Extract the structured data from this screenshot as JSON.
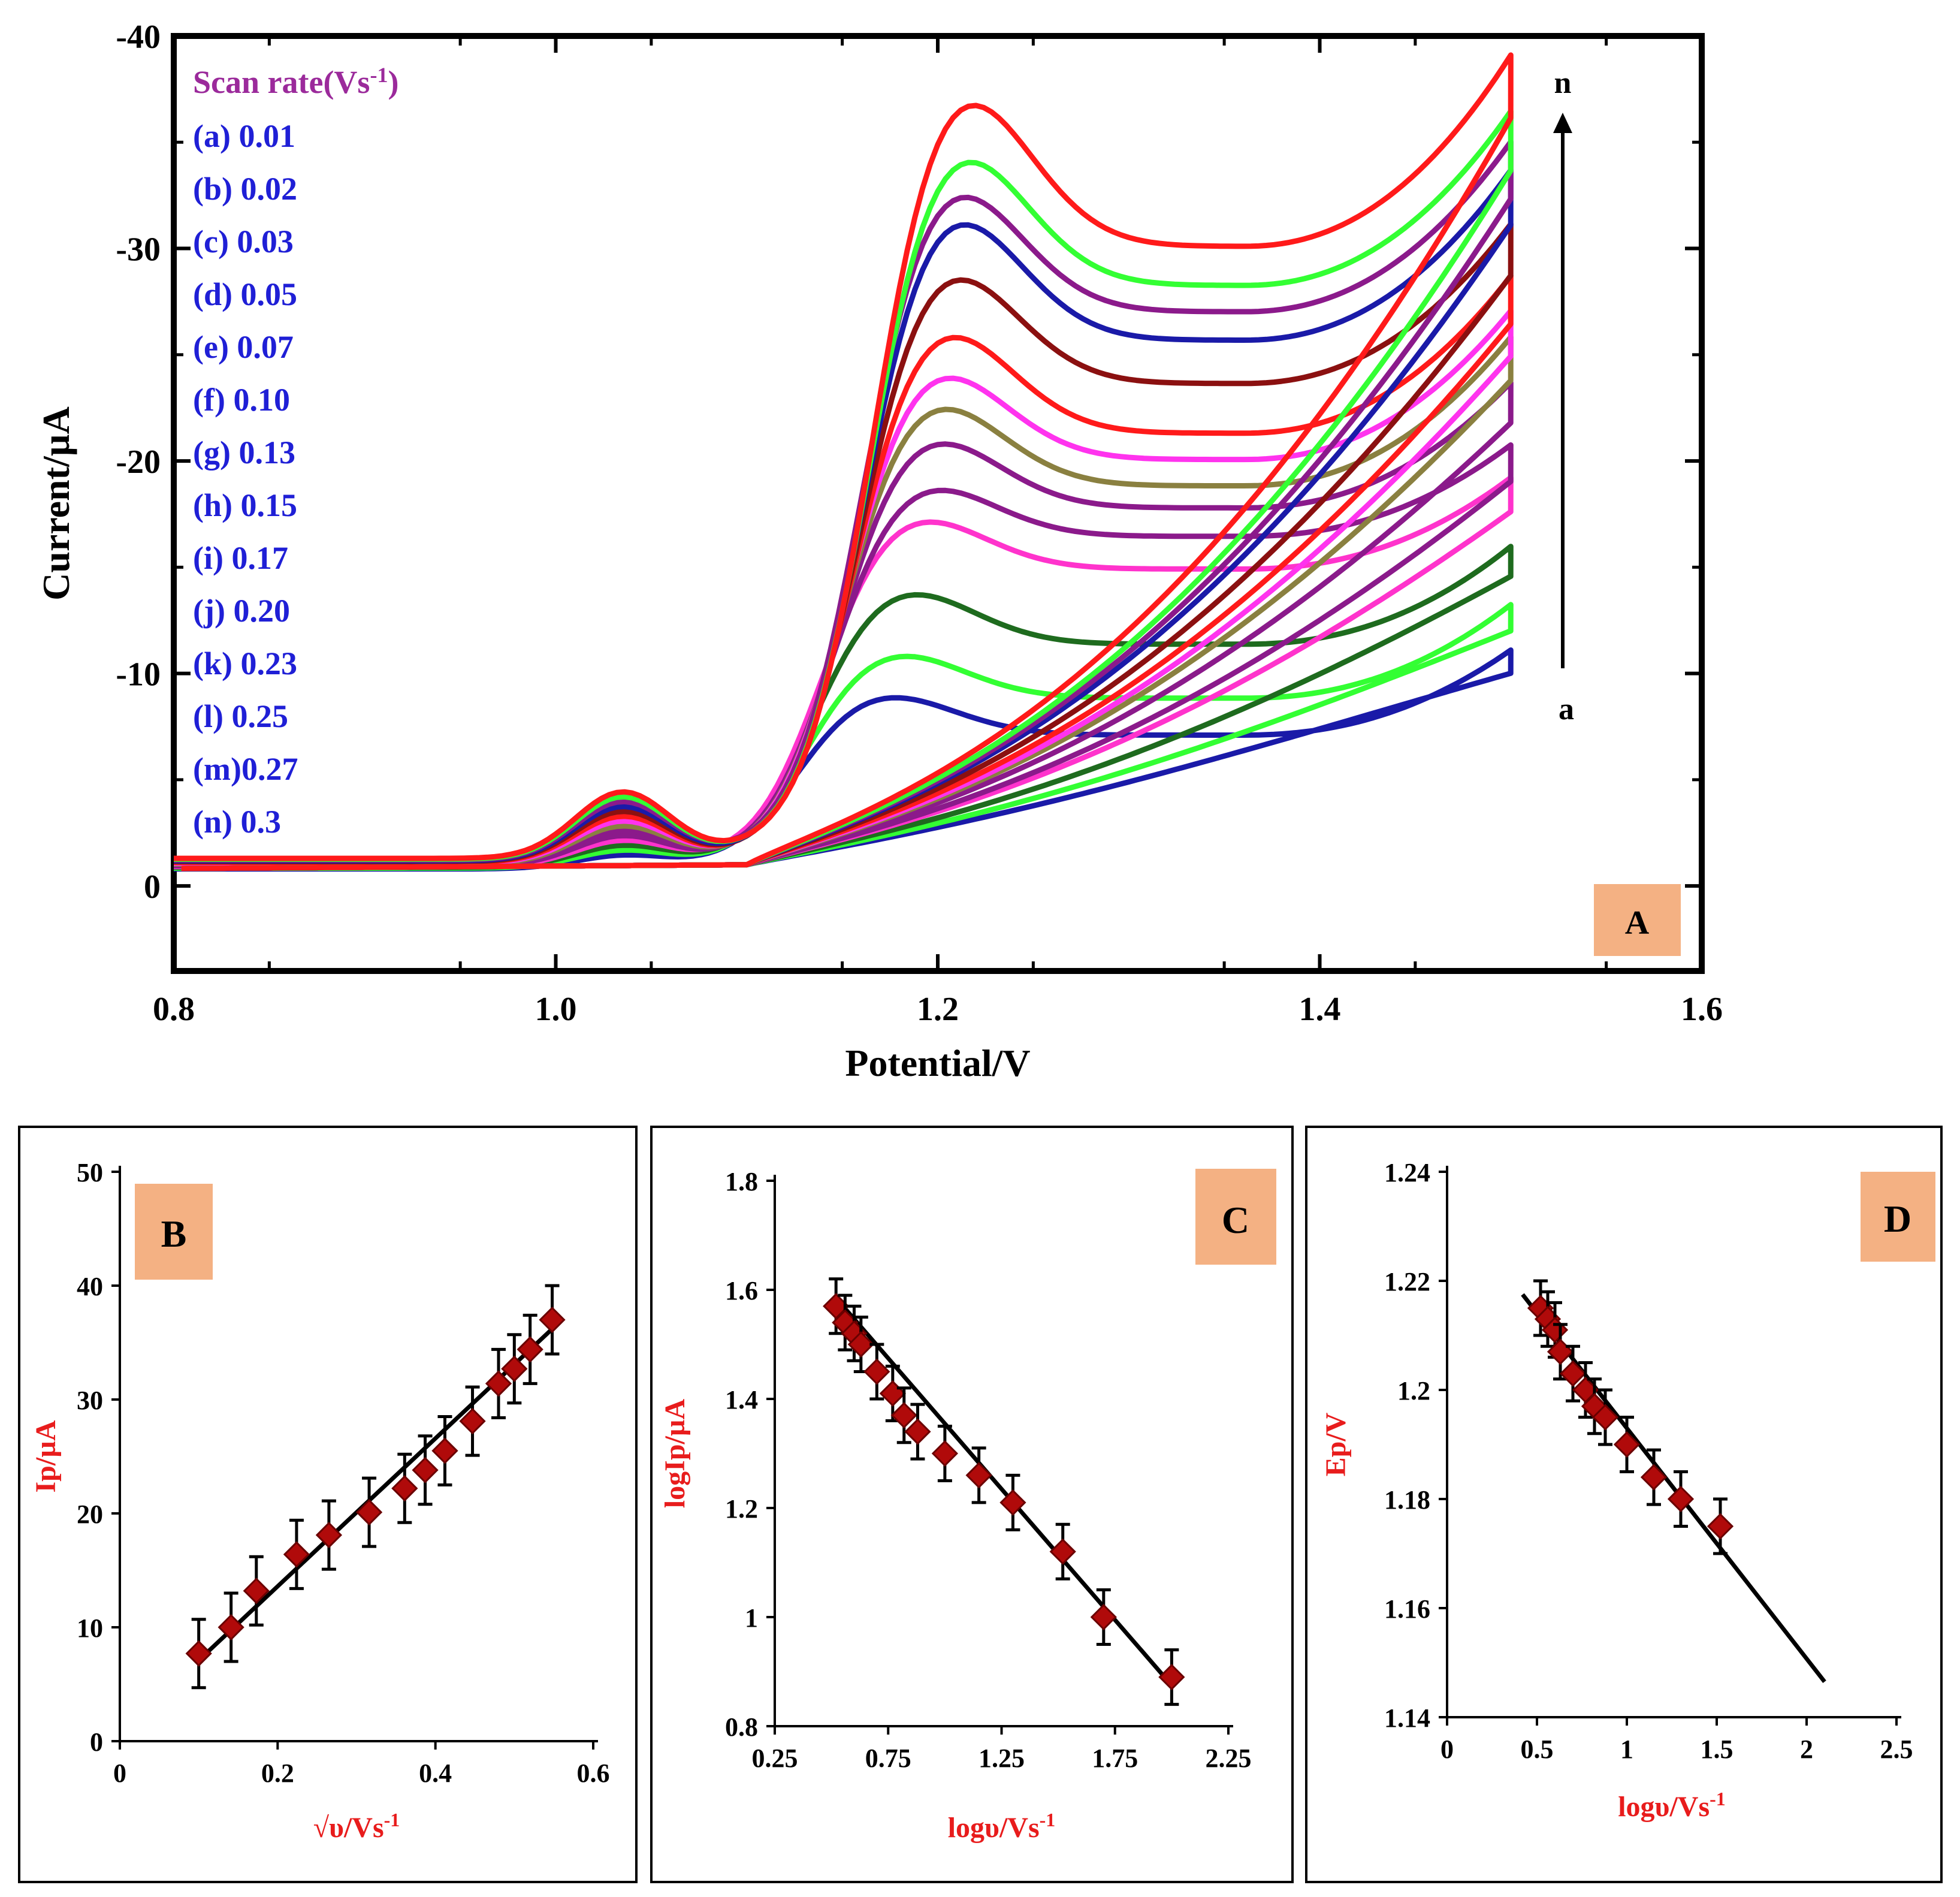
{
  "chart_data": [
    {
      "panel": "A",
      "type": "line",
      "xlabel": "Potential/V",
      "ylabel": "Current/µA",
      "xlim": [
        0.8,
        1.6
      ],
      "ylim": [
        4,
        -40
      ],
      "xticks": [
        "0.8",
        "1.0",
        "1.2",
        "1.4",
        "1.6"
      ],
      "xtick_values": [
        0.8,
        1.0,
        1.2,
        1.4,
        1.6
      ],
      "yticks": [
        "-40",
        "-30",
        "-20",
        "-10",
        "0"
      ],
      "ytick_values": [
        -40,
        -30,
        -20,
        -10,
        0
      ],
      "legend_title": "Scan rate(Vs",
      "legend_title_sup": "-1",
      "legend_title_end": ")",
      "arrow_top_label": "n",
      "arrow_bottom_label": "a",
      "series": [
        {
          "label": "(a) 0.01",
          "color": "#1a1aa8",
          "peak_e": 1.165,
          "peak_i": -8.5,
          "min_i": -6.3,
          "end_i": -10.3
        },
        {
          "label": "(b) 0.02",
          "color": "#33ff33",
          "peak_e": 1.17,
          "peak_i": -10.5,
          "min_i": -8.0,
          "end_i": -12.4
        },
        {
          "label": "(c) 0.03",
          "color": "#1e6b1e",
          "peak_e": 1.175,
          "peak_i": -13.5,
          "min_i": -10.5,
          "end_i": -15.1
        },
        {
          "label": "(d) 0.05",
          "color": "#ff33cc",
          "peak_e": 1.18,
          "peak_i": -17.0,
          "min_i": -14.0,
          "end_i": -18.3
        },
        {
          "label": "(e) 0.07",
          "color": "#8b1a8b",
          "peak_e": 1.185,
          "peak_i": -18.5,
          "min_i": -15.5,
          "end_i": -19.8
        },
        {
          "label": "(f) 0.10",
          "color": "#8b1a8b",
          "peak_e": 1.188,
          "peak_i": -20.8,
          "min_i": -16.8,
          "end_i": -22.7
        },
        {
          "label": "(g) 0.13",
          "color": "#8a8040",
          "peak_e": 1.19,
          "peak_i": -22.5,
          "min_i": -17.8,
          "end_i": -24.8
        },
        {
          "label": "(h) 0.15",
          "color": "#ff33ee",
          "peak_e": 1.192,
          "peak_i": -24.0,
          "min_i": -19.0,
          "end_i": -26.0
        },
        {
          "label": "(i)  0.17",
          "color": "#ff1a1a",
          "peak_e": 1.195,
          "peak_i": -26.0,
          "min_i": -20.2,
          "end_i": -27.6
        },
        {
          "label": "(j) 0.20",
          "color": "#8b1010",
          "peak_e": 1.198,
          "peak_i": -28.8,
          "min_i": -22.5,
          "end_i": -30.0
        },
        {
          "label": "(k) 0.23",
          "color": "#1a1aa8",
          "peak_e": 1.2,
          "peak_i": -31.5,
          "min_i": -24.5,
          "end_i": -32.5
        },
        {
          "label": "(l)  0.25",
          "color": "#8b1a8b",
          "peak_e": 1.2,
          "peak_i": -32.8,
          "min_i": -25.8,
          "end_i": -33.8
        },
        {
          "label": "(m)0.27",
          "color": "#33ff33",
          "peak_e": 1.203,
          "peak_i": -34.5,
          "min_i": -27.0,
          "end_i": -35.2
        },
        {
          "label": "(n)  0.3",
          "color": "#ff1a1a",
          "peak_e": 1.205,
          "peak_i": -37.3,
          "min_i": -28.8,
          "end_i": -37.8
        }
      ]
    },
    {
      "panel": "B",
      "type": "scatter",
      "xlabel": "√υ/Vs",
      "xlabel_sup": "-1",
      "ylabel": "Ip/µA",
      "xlim": [
        0,
        0.6
      ],
      "ylim": [
        0,
        50
      ],
      "xticks": [
        "0",
        "0.2",
        "0.4",
        "0.6"
      ],
      "xtick_values": [
        0,
        0.2,
        0.4,
        0.6
      ],
      "yticks": [
        "0",
        "10",
        "20",
        "30",
        "40",
        "50"
      ],
      "ytick_values": [
        0,
        10,
        20,
        30,
        40,
        50
      ],
      "x": [
        0.1,
        0.141,
        0.173,
        0.224,
        0.265,
        0.316,
        0.361,
        0.387,
        0.412,
        0.447,
        0.48,
        0.5,
        0.52,
        0.548
      ],
      "y": [
        7.7,
        10.0,
        13.2,
        16.4,
        18.1,
        20.1,
        22.2,
        23.8,
        25.5,
        28.1,
        31.4,
        32.7,
        34.4,
        37.0
      ],
      "error": 3.0,
      "fit": {
        "x": [
          0.1,
          0.548
        ],
        "y": [
          7.1,
          36.2
        ]
      }
    },
    {
      "panel": "C",
      "type": "scatter",
      "xlabel": "logυ/Vs",
      "xlabel_sup": "-1",
      "ylabel": "logIp/µA",
      "xlim": [
        0.25,
        2.25
      ],
      "ylim": [
        0.8,
        1.8
      ],
      "xticks": [
        "0.25",
        "0.75",
        "1.25",
        "1.75",
        "2.25"
      ],
      "xtick_values": [
        0.25,
        0.75,
        1.25,
        1.75,
        2.25
      ],
      "yticks": [
        "0.8",
        "1",
        "1.2",
        "1.4",
        "1.6",
        "1.8"
      ],
      "ytick_values": [
        0.8,
        1.0,
        1.2,
        1.4,
        1.6,
        1.8
      ],
      "x": [
        0.52,
        0.56,
        0.6,
        0.63,
        0.7,
        0.77,
        0.82,
        0.88,
        1.0,
        1.15,
        1.3,
        1.52,
        1.7,
        2.0
      ],
      "y": [
        1.57,
        1.54,
        1.52,
        1.5,
        1.45,
        1.41,
        1.37,
        1.34,
        1.3,
        1.26,
        1.21,
        1.12,
        1.0,
        0.89
      ],
      "error": 0.05,
      "fit": {
        "x": [
          0.52,
          2.0
        ],
        "y": [
          1.585,
          0.875
        ]
      }
    },
    {
      "panel": "D",
      "type": "scatter",
      "xlabel": "logυ/Vs",
      "xlabel_sup": "-1",
      "ylabel": "Ep/V",
      "xlim": [
        0,
        2.5
      ],
      "ylim": [
        1.14,
        1.24
      ],
      "xticks": [
        "0",
        "0.5",
        "1",
        "1.5",
        "2",
        "2.5"
      ],
      "xtick_values": [
        0,
        0.5,
        1.0,
        1.5,
        2.0,
        2.5
      ],
      "yticks": [
        "1.14",
        "1.16",
        "1.18",
        "1.2",
        "1.22",
        "1.24"
      ],
      "ytick_values": [
        1.14,
        1.16,
        1.18,
        1.2,
        1.22,
        1.24
      ],
      "x": [
        0.52,
        0.56,
        0.6,
        0.63,
        0.7,
        0.77,
        0.82,
        0.88,
        1.0,
        1.15,
        1.3,
        1.52
      ],
      "y": [
        1.215,
        1.213,
        1.211,
        1.207,
        1.203,
        1.2,
        1.197,
        1.195,
        1.19,
        1.184,
        1.18,
        1.175
      ],
      "error": 0.005,
      "fit": {
        "x": [
          0.42,
          2.1
        ],
        "y": [
          1.2175,
          1.1465
        ]
      }
    }
  ]
}
